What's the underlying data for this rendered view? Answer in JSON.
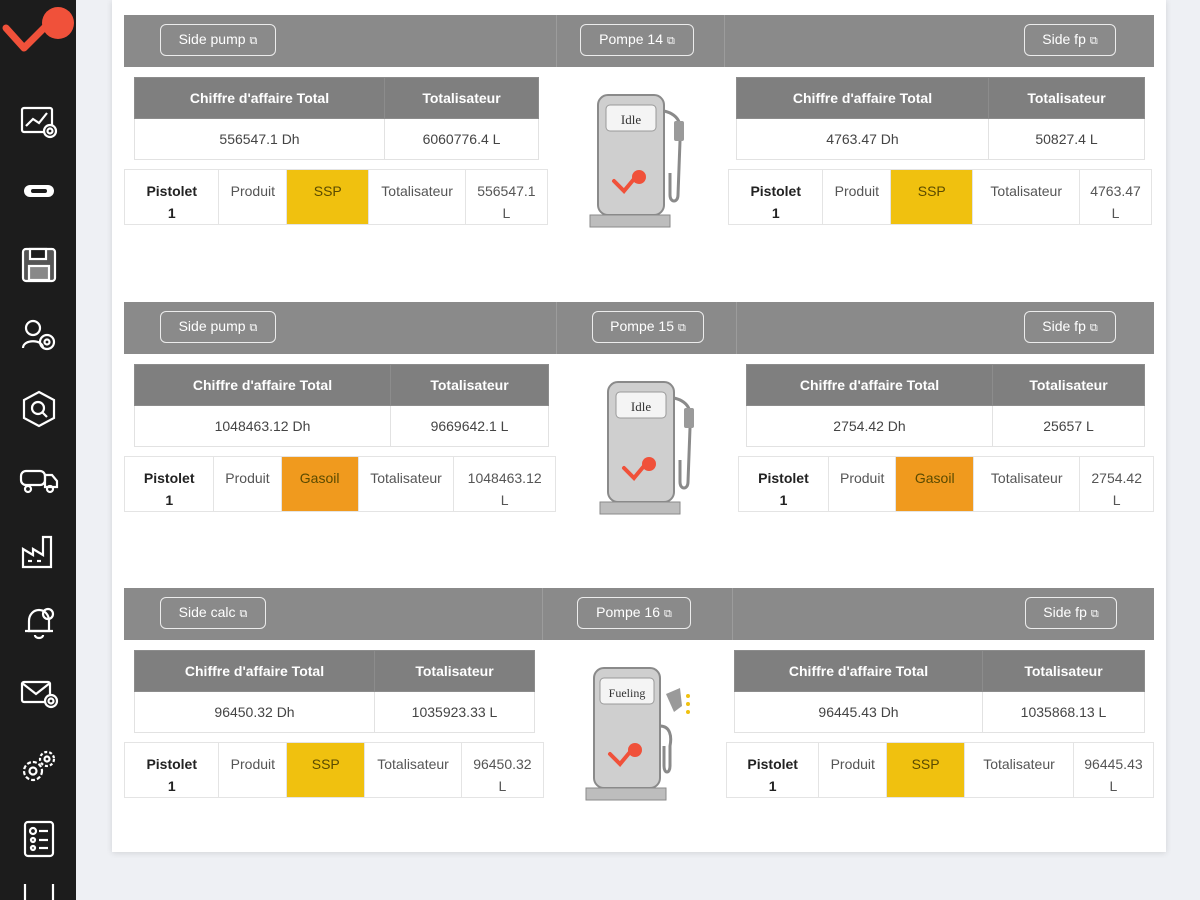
{
  "colors": {
    "sidebar_bg": "#1c1c1c",
    "header_bg": "#8a8a8a",
    "table_header_bg": "#7f7f7f",
    "accent_logo": "#f0513a",
    "ssp": "#f0c10f",
    "gasoil": "#f09a1e"
  },
  "sidebar": {
    "items": [
      {
        "icon": "dashboard-chart-icon"
      },
      {
        "icon": "fuel-nozzle-icon"
      },
      {
        "icon": "save-disk-icon"
      },
      {
        "icon": "users-settings-icon"
      },
      {
        "icon": "network-search-icon"
      },
      {
        "icon": "tanker-truck-icon"
      },
      {
        "icon": "factory-chart-icon"
      },
      {
        "icon": "alarm-bell-icon"
      },
      {
        "icon": "mail-settings-icon"
      },
      {
        "icon": "gears-icon"
      },
      {
        "icon": "report-list-icon"
      },
      {
        "icon": "more-icon"
      }
    ]
  },
  "pumps": [
    {
      "left_button": "Side pump",
      "center_button": "Pompe 14",
      "right_button": "Side fp",
      "status": "Idle",
      "left": {
        "col_ca": "Chiffre d'affaire Total",
        "col_tot": "Totalisateur",
        "ca": "556547.1 Dh",
        "tot": "6060776.4 L",
        "pistolet": [
          "Pistolet",
          "1"
        ],
        "produit_label": "Produit",
        "produit": "SSP",
        "totalisateur_label": "Totalisateur",
        "totalisateur": [
          "556547.1",
          "L"
        ]
      },
      "right": {
        "col_ca": "Chiffre d'affaire Total",
        "col_tot": "Totalisateur",
        "ca": "4763.47 Dh",
        "tot": "50827.4 L",
        "pistolet": [
          "Pistolet",
          "1"
        ],
        "produit_label": "Produit",
        "produit": "SSP",
        "totalisateur_label": "Totalisateur",
        "totalisateur": [
          "4763.47",
          "L"
        ]
      }
    },
    {
      "left_button": "Side pump",
      "center_button": "Pompe 15",
      "right_button": "Side fp",
      "status": "Idle",
      "left": {
        "col_ca": "Chiffre d'affaire Total",
        "col_tot": "Totalisateur",
        "ca": "1048463.12 Dh",
        "tot": "9669642.1 L",
        "pistolet": [
          "Pistolet",
          "1"
        ],
        "produit_label": "Produit",
        "produit": "Gasoil",
        "totalisateur_label": "Totalisateur",
        "totalisateur": [
          "1048463.12",
          "L"
        ]
      },
      "right": {
        "col_ca": "Chiffre d'affaire Total",
        "col_tot": "Totalisateur",
        "ca": "2754.42 Dh",
        "tot": "25657 L",
        "pistolet": [
          "Pistolet",
          "1"
        ],
        "produit_label": "Produit",
        "produit": "Gasoil",
        "totalisateur_label": "Totalisateur",
        "totalisateur": [
          "2754.42",
          "L"
        ]
      }
    },
    {
      "left_button": "Side calc",
      "center_button": "Pompe 16",
      "right_button": "Side fp",
      "status": "Fueling",
      "left": {
        "col_ca": "Chiffre d'affaire Total",
        "col_tot": "Totalisateur",
        "ca": "96450.32 Dh",
        "tot": "1035923.33 L",
        "pistolet": [
          "Pistolet",
          "1"
        ],
        "produit_label": "Produit",
        "produit": "SSP",
        "totalisateur_label": "Totalisateur",
        "totalisateur": [
          "96450.32",
          "L"
        ]
      },
      "right": {
        "col_ca": "Chiffre d'affaire Total",
        "col_tot": "Totalisateur",
        "ca": "96445.43 Dh",
        "tot": "1035868.13 L",
        "pistolet": [
          "Pistolet",
          "1"
        ],
        "produit_label": "Produit",
        "produit": "SSP",
        "totalisateur_label": "Totalisateur",
        "totalisateur": [
          "96445.43",
          "L"
        ]
      }
    }
  ]
}
